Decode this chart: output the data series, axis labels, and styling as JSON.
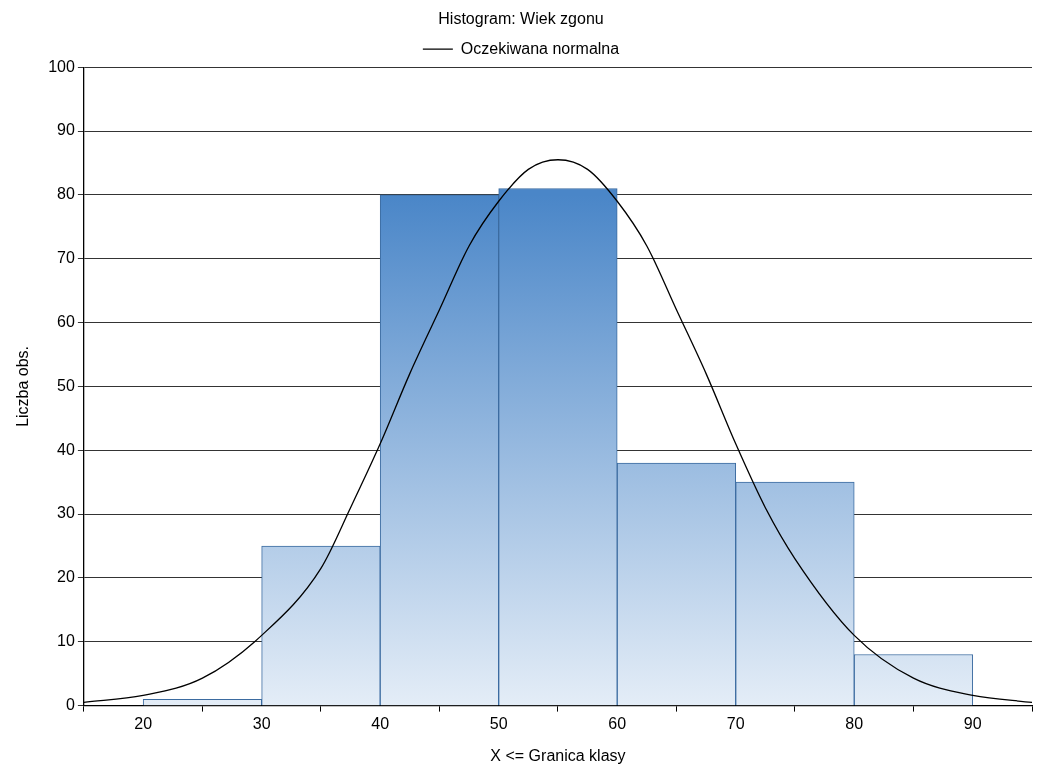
{
  "chart_data": {
    "type": "histogram",
    "title": "Histogram: Wiek zgonu",
    "xlabel": "X <= Granica klasy",
    "ylabel": "Liczba obs.",
    "bins": [
      20,
      30,
      40,
      50,
      60,
      70,
      80,
      90
    ],
    "values": [
      1,
      25,
      80,
      81,
      38,
      35,
      8
    ],
    "color": "#4a86c8",
    "series": [
      {
        "type": "line",
        "name": "Oczekiwana normalna",
        "color": "#000000",
        "x": [
          15,
          20,
          25,
          30,
          35,
          37.5,
          40,
          42.5,
          45,
          47.5,
          50,
          52.5,
          55,
          57.5,
          60,
          62.5,
          65,
          67.5,
          70,
          72.5,
          75,
          80,
          85,
          90,
          95
        ],
        "values": [
          0.5,
          1.6,
          4.3,
          11,
          21.5,
          31,
          41,
          52,
          62,
          72,
          79,
          84,
          85.5,
          84,
          79,
          72,
          62,
          52,
          41,
          31,
          23,
          11,
          4.3,
          1.6,
          0.5
        ]
      }
    ],
    "xlim": [
      15,
      95
    ],
    "xticks": [
      20,
      30,
      40,
      50,
      60,
      70,
      80,
      90
    ],
    "ylim": [
      0,
      100
    ],
    "yticks": [
      0,
      10,
      20,
      30,
      40,
      50,
      60,
      70,
      80,
      90,
      100
    ],
    "grid": "y",
    "legend": "top",
    "marker": "none"
  }
}
